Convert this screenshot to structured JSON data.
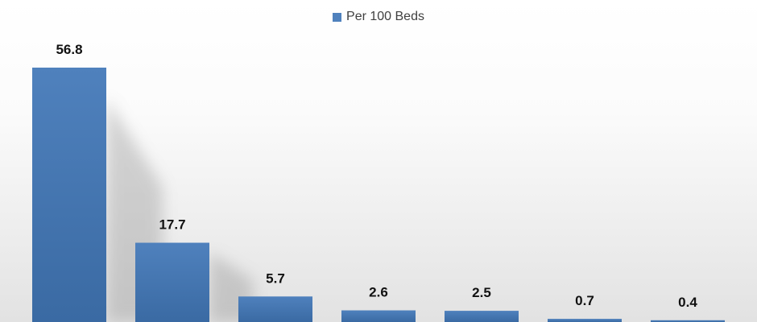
{
  "chart_data": {
    "type": "bar",
    "categories": [
      "",
      "",
      "",
      "",
      "",
      "",
      ""
    ],
    "series": [
      {
        "name": "Per 100 Beds",
        "values": [
          56.8,
          17.7,
          5.7,
          2.6,
          2.5,
          0.7,
          0.4
        ]
      }
    ],
    "data_labels": [
      "56.8",
      "17.7",
      "5.7",
      "2.6",
      "2.5",
      "0.7",
      "0.4"
    ],
    "title": "",
    "xlabel": "",
    "ylabel": "",
    "ylim": [
      0,
      60
    ],
    "grid": false,
    "legend": "top-center",
    "colors": {
      "bar": "#4f81bd",
      "bar_dark": "#3a6aa3",
      "label": "#111111"
    }
  }
}
